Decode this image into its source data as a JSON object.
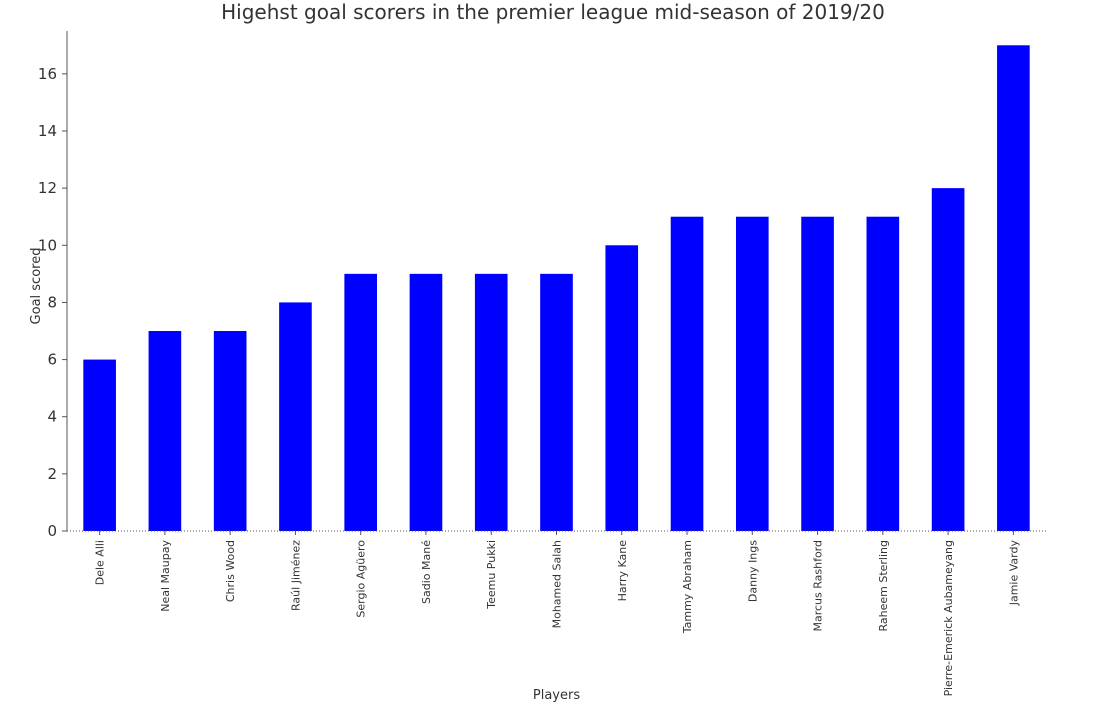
{
  "chart_data": {
    "type": "bar",
    "title": "Higehst goal scorers in the premier league mid-season of 2019/20",
    "xlabel": "Players",
    "ylabel": "Goal scored",
    "categories": [
      "Dele Alli",
      "Neal Maupay",
      "Chris Wood",
      "Raúl Jiménez",
      "Sergio Agüero",
      "Sadio Mané",
      "Teemu Pukki",
      "Mohamed Salah",
      "Harry Kane",
      "Tammy Abraham",
      "Danny Ings",
      "Marcus Rashford",
      "Raheem Sterling",
      "Pierre-Emerick Aubameyang",
      "Jamie Vardy"
    ],
    "values": [
      6,
      7,
      7,
      8,
      9,
      9,
      9,
      9,
      10,
      11,
      11,
      11,
      11,
      12,
      17
    ],
    "ylim": [
      0,
      17.5
    ],
    "yticks": [
      0,
      2,
      4,
      6,
      8,
      10,
      12,
      14,
      16
    ],
    "bar_color": "#0000ff",
    "grid": false,
    "legend": "none"
  }
}
